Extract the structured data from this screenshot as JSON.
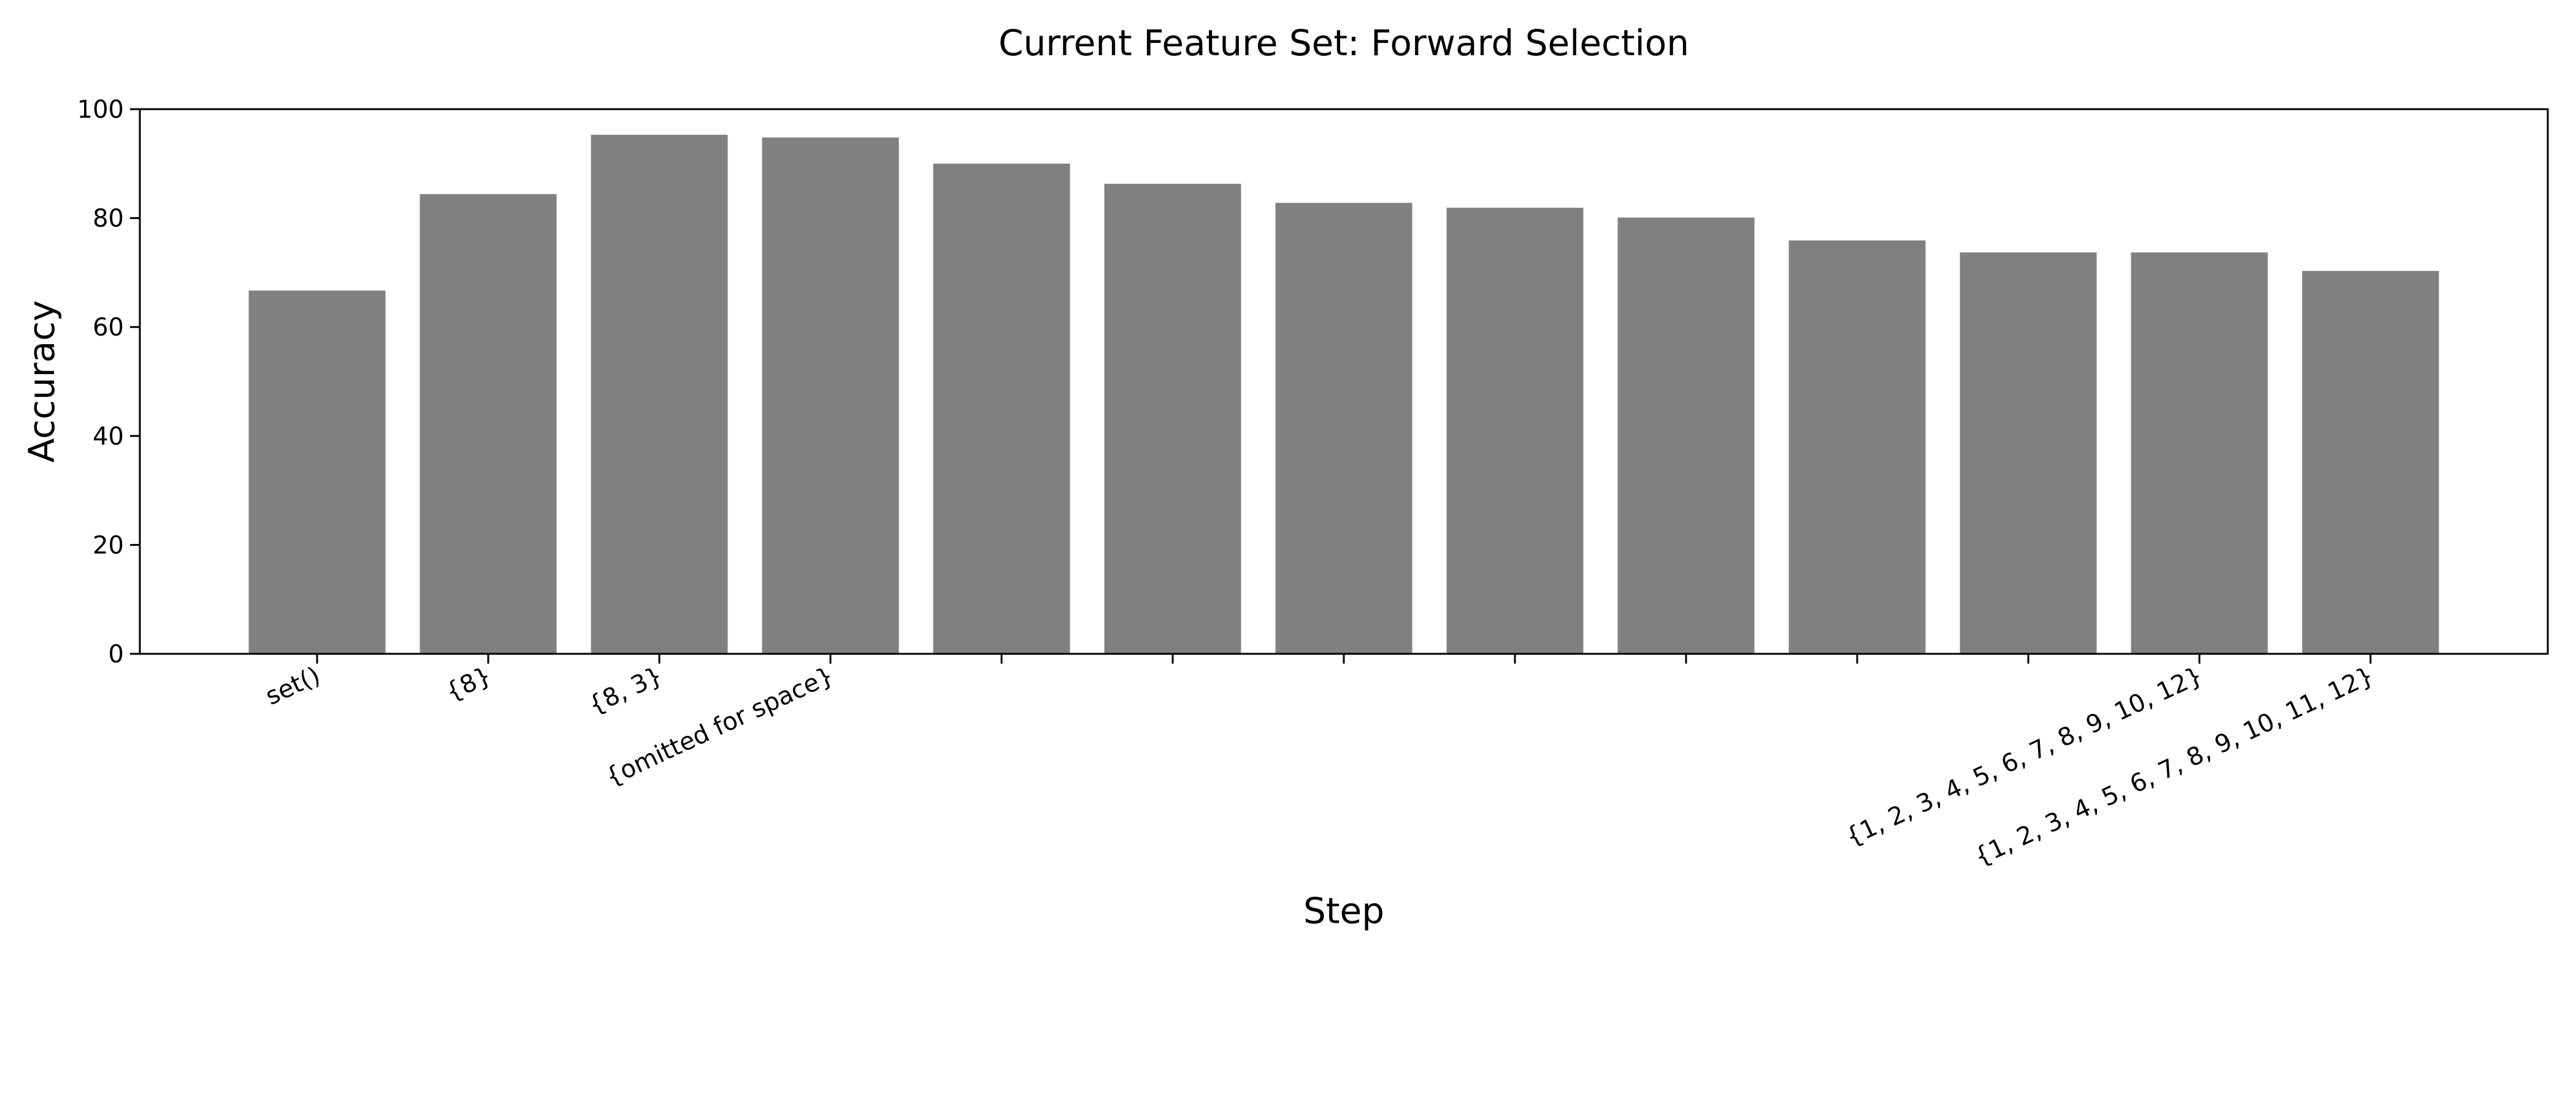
{
  "chart_data": {
    "type": "bar",
    "title": "Current Feature Set: Forward Selection",
    "xlabel": "Step",
    "ylabel": "Accuracy",
    "ylim": [
      0,
      100
    ],
    "yticks": [
      0,
      20,
      40,
      60,
      80,
      100
    ],
    "grid": false,
    "bar_color": "#808080",
    "categories": [
      "set()",
      "{8}",
      "{8, 3}",
      "{omitted for space}",
      "",
      "",
      "",
      "",
      "",
      "",
      "",
      "{1, 2, 3, 4, 5, 6, 7, 8, 9, 10, 12}",
      "{1, 2, 3, 4, 5, 6, 7, 8, 9, 10, 11, 12}"
    ],
    "values": [
      66.7,
      84.4,
      95.3,
      94.8,
      90.0,
      86.3,
      82.8,
      81.9,
      80.1,
      75.9,
      73.7,
      73.7,
      70.3
    ]
  }
}
